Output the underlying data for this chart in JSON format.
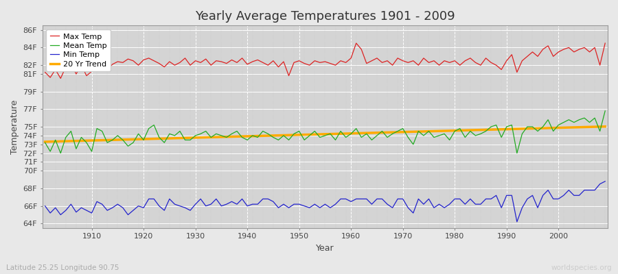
{
  "title": "Yearly Average Temperatures 1901 - 2009",
  "xlabel": "Year",
  "ylabel": "Temperature",
  "lat_lon_label": "Latitude 25.25 Longitude 90.75",
  "watermark": "worldspecies.org",
  "years": [
    1901,
    1902,
    1903,
    1904,
    1905,
    1906,
    1907,
    1908,
    1909,
    1910,
    1911,
    1912,
    1913,
    1914,
    1915,
    1916,
    1917,
    1918,
    1919,
    1920,
    1921,
    1922,
    1923,
    1924,
    1925,
    1926,
    1927,
    1928,
    1929,
    1930,
    1931,
    1932,
    1933,
    1934,
    1935,
    1936,
    1937,
    1938,
    1939,
    1940,
    1941,
    1942,
    1943,
    1944,
    1945,
    1946,
    1947,
    1948,
    1949,
    1950,
    1951,
    1952,
    1953,
    1954,
    1955,
    1956,
    1957,
    1958,
    1959,
    1960,
    1961,
    1962,
    1963,
    1964,
    1965,
    1966,
    1967,
    1968,
    1969,
    1970,
    1971,
    1972,
    1973,
    1974,
    1975,
    1976,
    1977,
    1978,
    1979,
    1980,
    1981,
    1982,
    1983,
    1984,
    1985,
    1986,
    1987,
    1988,
    1989,
    1990,
    1991,
    1992,
    1993,
    1994,
    1995,
    1996,
    1997,
    1998,
    1999,
    2000,
    2001,
    2002,
    2003,
    2004,
    2005,
    2006,
    2007,
    2008,
    2009
  ],
  "max_temp": [
    81.2,
    80.6,
    81.5,
    80.5,
    81.8,
    82.2,
    81.0,
    82.0,
    80.8,
    81.3,
    82.3,
    82.0,
    81.5,
    82.1,
    82.4,
    82.3,
    82.7,
    82.5,
    82.0,
    82.6,
    82.8,
    82.5,
    82.2,
    81.8,
    82.4,
    82.0,
    82.3,
    82.8,
    82.0,
    82.5,
    82.3,
    82.7,
    82.0,
    82.5,
    82.4,
    82.2,
    82.6,
    82.3,
    82.8,
    82.1,
    82.4,
    82.6,
    82.3,
    82.0,
    82.5,
    81.8,
    82.4,
    80.8,
    82.3,
    82.5,
    82.2,
    82.0,
    82.5,
    82.3,
    82.4,
    82.2,
    82.0,
    82.5,
    82.3,
    82.8,
    84.5,
    83.8,
    82.2,
    82.5,
    82.8,
    82.3,
    82.5,
    82.0,
    82.8,
    82.5,
    82.3,
    82.5,
    82.0,
    82.8,
    82.3,
    82.5,
    82.0,
    82.5,
    82.3,
    82.5,
    82.0,
    82.5,
    82.8,
    82.3,
    82.0,
    82.8,
    82.3,
    82.0,
    81.5,
    82.5,
    83.2,
    81.2,
    82.5,
    83.0,
    83.5,
    83.0,
    83.8,
    84.2,
    83.0,
    83.5,
    83.8,
    84.0,
    83.5,
    83.8,
    84.0,
    83.5,
    84.0,
    82.0,
    84.5
  ],
  "mean_temp": [
    73.2,
    72.2,
    73.5,
    72.0,
    73.8,
    74.5,
    72.5,
    73.8,
    73.2,
    72.2,
    74.8,
    74.5,
    73.2,
    73.5,
    74.0,
    73.5,
    72.8,
    73.2,
    74.2,
    73.5,
    74.8,
    75.2,
    73.8,
    73.2,
    74.2,
    74.0,
    74.5,
    73.5,
    73.5,
    74.0,
    74.2,
    74.5,
    73.8,
    74.2,
    74.0,
    73.8,
    74.2,
    74.5,
    73.8,
    73.5,
    74.0,
    73.8,
    74.5,
    74.2,
    73.8,
    73.5,
    74.0,
    73.5,
    74.2,
    74.5,
    73.5,
    74.0,
    74.5,
    73.8,
    74.0,
    74.2,
    73.5,
    74.5,
    73.8,
    74.2,
    74.8,
    73.8,
    74.2,
    73.5,
    74.0,
    74.5,
    73.8,
    74.2,
    74.5,
    74.8,
    73.8,
    73.0,
    74.5,
    74.0,
    74.5,
    73.8,
    74.0,
    74.2,
    73.5,
    74.5,
    74.8,
    73.8,
    74.5,
    74.0,
    74.2,
    74.5,
    75.0,
    75.2,
    73.8,
    75.0,
    75.2,
    72.0,
    74.2,
    75.0,
    75.0,
    74.5,
    75.0,
    75.8,
    74.5,
    75.2,
    75.5,
    75.8,
    75.5,
    75.8,
    76.0,
    75.5,
    76.0,
    74.5,
    76.8
  ],
  "min_temp": [
    66.0,
    65.2,
    65.8,
    65.0,
    65.5,
    66.2,
    65.3,
    65.8,
    65.5,
    65.2,
    66.5,
    66.2,
    65.5,
    65.8,
    66.2,
    65.8,
    65.0,
    65.5,
    66.0,
    65.8,
    66.8,
    66.8,
    66.0,
    65.5,
    66.8,
    66.2,
    66.0,
    65.8,
    65.5,
    66.2,
    66.8,
    66.0,
    66.2,
    66.8,
    66.0,
    66.2,
    66.5,
    66.2,
    66.8,
    66.0,
    66.2,
    66.2,
    66.8,
    66.8,
    66.5,
    65.8,
    66.2,
    65.8,
    66.2,
    66.2,
    66.0,
    65.8,
    66.2,
    65.8,
    66.2,
    65.8,
    66.2,
    66.8,
    66.8,
    66.5,
    66.8,
    66.8,
    66.8,
    66.2,
    66.8,
    66.8,
    66.2,
    65.8,
    66.8,
    66.8,
    65.8,
    65.2,
    66.8,
    66.2,
    66.8,
    65.8,
    66.2,
    65.8,
    66.2,
    66.8,
    66.8,
    66.2,
    66.8,
    66.2,
    66.2,
    66.8,
    66.8,
    67.2,
    65.8,
    67.2,
    67.2,
    64.2,
    65.8,
    66.8,
    67.2,
    65.8,
    67.2,
    67.8,
    66.8,
    66.8,
    67.2,
    67.8,
    67.2,
    67.2,
    67.8,
    67.8,
    67.8,
    68.5,
    68.8
  ],
  "bg_color": "#e8e8e8",
  "plot_bg_color": "#d4d4d4",
  "grid_color_major": "#ffffff",
  "grid_color_minor": "#c8c8c8",
  "max_color": "#dd2222",
  "mean_color": "#22aa22",
  "min_color": "#2222cc",
  "trend_color": "#ffaa00",
  "ylim_min": 63.5,
  "ylim_max": 86.5,
  "yticks": [
    64,
    66,
    68,
    70,
    71,
    72,
    73,
    74,
    75,
    77,
    79,
    81,
    82,
    84,
    86
  ],
  "xtick_years": [
    1910,
    1920,
    1930,
    1940,
    1950,
    1960,
    1970,
    1980,
    1990,
    2000
  ]
}
